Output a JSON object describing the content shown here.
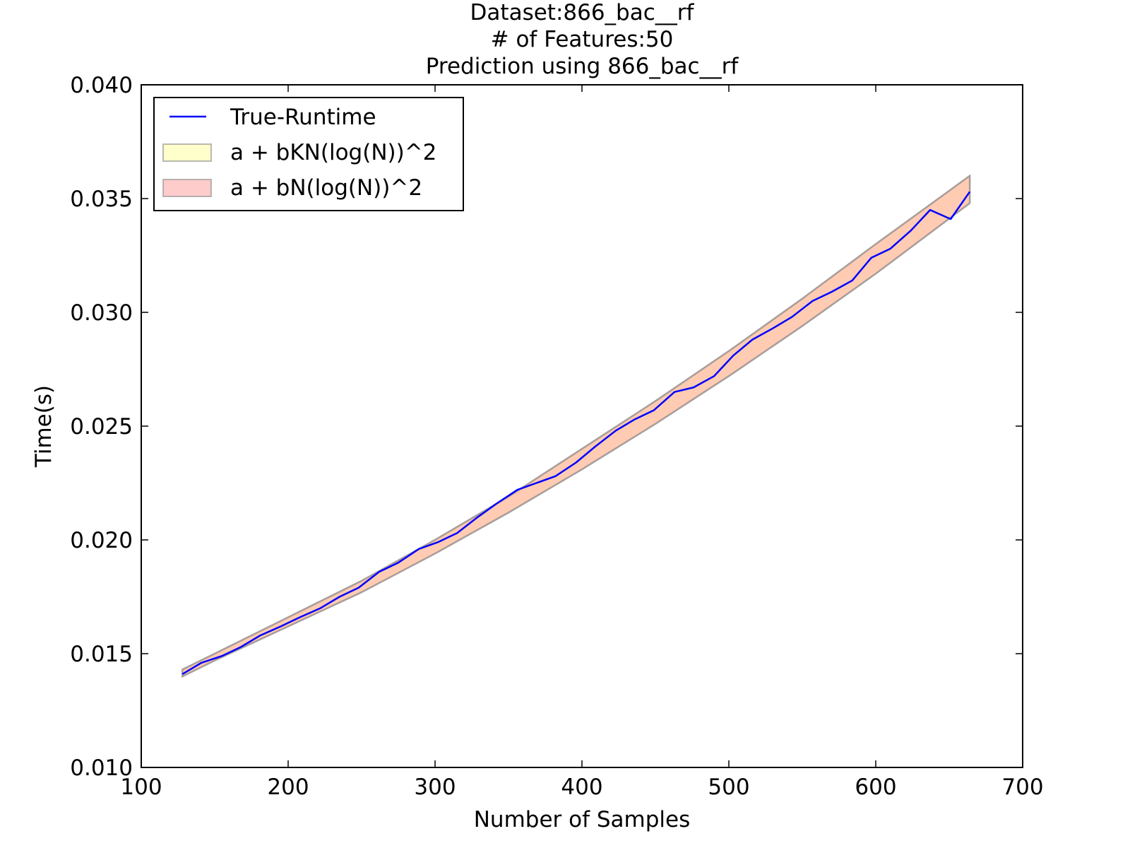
{
  "chart_data": {
    "type": "line",
    "title_lines": [
      "Dataset:866_bac__rf",
      "# of Features:50",
      "Prediction using 866_bac__rf"
    ],
    "xlabel": "Number of Samples",
    "ylabel": "Time(s)",
    "xlim": [
      100,
      700
    ],
    "ylim": [
      0.01,
      0.04
    ],
    "xticks": [
      100,
      200,
      300,
      400,
      500,
      600,
      700
    ],
    "xtick_labels": [
      "100",
      "200",
      "300",
      "400",
      "500",
      "600",
      "700"
    ],
    "yticks": [
      0.01,
      0.015,
      0.02,
      0.025,
      0.03,
      0.035,
      0.04
    ],
    "ytick_labels": [
      "0.010",
      "0.015",
      "0.020",
      "0.025",
      "0.030",
      "0.035",
      "0.040"
    ],
    "grid": false,
    "legend_position": "top-left",
    "series": [
      {
        "name": "True-Runtime",
        "kind": "line",
        "color": "#0000ff",
        "x": [
          128,
          141,
          155,
          168,
          181,
          195,
          208,
          222,
          235,
          248,
          262,
          275,
          289,
          302,
          315,
          329,
          342,
          356,
          369,
          382,
          396,
          409,
          423,
          436,
          449,
          463,
          476,
          490,
          503,
          516,
          530,
          543,
          557,
          570,
          584,
          597,
          610,
          624,
          637,
          651,
          664
        ],
        "y": [
          0.0141,
          0.0146,
          0.0149,
          0.0153,
          0.0158,
          0.0162,
          0.0166,
          0.017,
          0.0175,
          0.0179,
          0.0186,
          0.019,
          0.0196,
          0.0199,
          0.0203,
          0.021,
          0.0216,
          0.0222,
          0.0225,
          0.0228,
          0.0234,
          0.0241,
          0.0248,
          0.0253,
          0.0257,
          0.0265,
          0.0267,
          0.0272,
          0.0281,
          0.0288,
          0.0293,
          0.0298,
          0.0305,
          0.0309,
          0.0314,
          0.0324,
          0.0328,
          0.0336,
          0.0345,
          0.0341,
          0.0353
        ]
      },
      {
        "name": "a + bKN(log(N))^2",
        "kind": "band",
        "color": "#ffff99",
        "x": [
          128,
          150,
          200,
          250,
          300,
          350,
          400,
          450,
          500,
          550,
          600,
          664
        ],
        "lower": [
          0.014,
          0.0147,
          0.0162,
          0.0177,
          0.0194,
          0.0212,
          0.0231,
          0.0251,
          0.0272,
          0.0294,
          0.0317,
          0.0348
        ],
        "upper": [
          0.0143,
          0.015,
          0.0166,
          0.0182,
          0.02,
          0.0219,
          0.024,
          0.0261,
          0.0283,
          0.0306,
          0.033,
          0.036
        ]
      },
      {
        "name": "a + bN(log(N))^2",
        "kind": "band",
        "color": "#ff9999",
        "x": [
          128,
          150,
          200,
          250,
          300,
          350,
          400,
          450,
          500,
          550,
          600,
          664
        ],
        "lower": [
          0.014,
          0.0147,
          0.0162,
          0.0177,
          0.0194,
          0.0212,
          0.0231,
          0.0251,
          0.0272,
          0.0294,
          0.0317,
          0.0348
        ],
        "upper": [
          0.0143,
          0.015,
          0.0166,
          0.0182,
          0.02,
          0.0219,
          0.024,
          0.0261,
          0.0283,
          0.0306,
          0.033,
          0.036
        ]
      }
    ]
  }
}
